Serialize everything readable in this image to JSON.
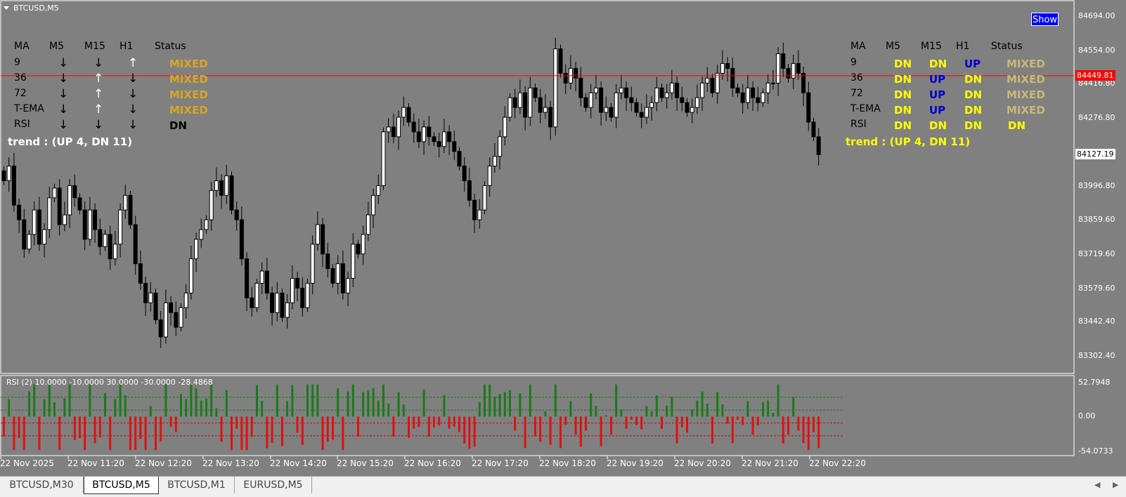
{
  "window": {
    "title": "BTCUSD,M5",
    "show_button": "Show"
  },
  "colors": {
    "bull_candle": "#ffffff",
    "bear_candle": "#000000",
    "bid_line": "#ff0000",
    "rsi_up": "#1a7a1a",
    "rsi_down": "#e01010",
    "status_mixed_left": "#daa520",
    "status_mixed_right": "#c8b878",
    "dn_yellow": "#ffff00",
    "up_blue": "#0000cc"
  },
  "left_table": {
    "headers": [
      "MA",
      "M5",
      "M15",
      "H1",
      "Status"
    ],
    "rows": [
      {
        "label": "9",
        "m5": "↓",
        "m15": "↓",
        "h1": "↑",
        "status": "MIXED"
      },
      {
        "label": "36",
        "m5": "↓",
        "m15": "↑",
        "h1": "↓",
        "status": "MIXED"
      },
      {
        "label": "72",
        "m5": "↓",
        "m15": "↑",
        "h1": "↓",
        "status": "MIXED"
      },
      {
        "label": "T-EMA",
        "m5": "↓",
        "m15": "↑",
        "h1": "↓",
        "status": "MIXED"
      },
      {
        "label": "RSI",
        "m5": "↓",
        "m15": "↓",
        "h1": "↓",
        "status": "DN"
      }
    ],
    "trend": "trend : (UP 4, DN 11)"
  },
  "right_table": {
    "headers": [
      "MA",
      "M5",
      "M15",
      "H1",
      "Status"
    ],
    "rows": [
      {
        "label": "9",
        "m5": "DN",
        "m15": "DN",
        "h1": "UP",
        "status": "MIXED"
      },
      {
        "label": "36",
        "m5": "DN",
        "m15": "UP",
        "h1": "DN",
        "status": "MIXED"
      },
      {
        "label": "72",
        "m5": "DN",
        "m15": "UP",
        "h1": "DN",
        "status": "MIXED"
      },
      {
        "label": "T-EMA",
        "m5": "DN",
        "m15": "UP",
        "h1": "DN",
        "status": "MIXED"
      },
      {
        "label": "RSI",
        "m5": "DN",
        "m15": "DN",
        "h1": "DN",
        "status": "DN"
      }
    ],
    "trend": "trend : (UP 4, DN 11)"
  },
  "price_axis": {
    "labels": [
      "84694.00",
      "84554.00",
      "84416.80",
      "84276.80",
      "83996.80",
      "83859.60",
      "83719.60",
      "83579.60",
      "83442.40",
      "83302.40"
    ],
    "bid_label": "84449.81",
    "current_label": "84127.19"
  },
  "rsi": {
    "title": "RSI (2) 10.0000 -10.0000 30.0000 -30.0000 -28.4868",
    "axis_labels": [
      "52.7948",
      "0.00",
      "-54.0733"
    ],
    "levels": [
      30,
      10,
      -10,
      -30
    ]
  },
  "time_axis": {
    "labels": [
      "22 Nov 2025",
      "22 Nov 11:20",
      "22 Nov 12:20",
      "22 Nov 13:20",
      "22 Nov 14:20",
      "22 Nov 15:20",
      "22 Nov 16:20",
      "22 Nov 17:20",
      "22 Nov 18:20",
      "22 Nov 19:20",
      "22 Nov 20:20",
      "22 Nov 21:20",
      "22 Nov 22:20"
    ]
  },
  "tabs": [
    {
      "label": "BTCUSD,M30",
      "active": false
    },
    {
      "label": "BTCUSD,M5",
      "active": true
    },
    {
      "label": "BTCUSD,M1",
      "active": false
    },
    {
      "label": "EURUSD,M5",
      "active": false
    }
  ],
  "chart_data": {
    "type": "candlestick",
    "symbol": "BTCUSD",
    "timeframe": "M5",
    "close": [
      84020,
      84080,
      83920,
      83860,
      83740,
      83800,
      83900,
      83760,
      83820,
      83950,
      83990,
      83840,
      83880,
      84000,
      83950,
      83900,
      83780,
      83900,
      83820,
      83750,
      83800,
      83700,
      83760,
      83900,
      83960,
      83840,
      83680,
      83600,
      83520,
      83560,
      83450,
      83380,
      83520,
      83480,
      83420,
      83500,
      83560,
      83700,
      83780,
      83820,
      83860,
      83980,
      84020,
      83960,
      84040,
      83900,
      83860,
      83700,
      83540,
      83500,
      83600,
      83650,
      83560,
      83480,
      83560,
      83460,
      83520,
      83620,
      83580,
      83500,
      83600,
      83760,
      83840,
      83720,
      83660,
      83600,
      83680,
      83560,
      83620,
      83760,
      83720,
      83800,
      83880,
      83960,
      84000,
      84220,
      84240,
      84200,
      84280,
      84320,
      84260,
      84220,
      84180,
      84240,
      84200,
      84180,
      84160,
      84220,
      84180,
      84140,
      84080,
      84020,
      83940,
      83860,
      83900,
      84000,
      84080,
      84120,
      84200,
      84280,
      84360,
      84320,
      84380,
      84280,
      84400,
      84360,
      84300,
      84320,
      84240,
      84560,
      84460,
      84420,
      84480,
      84440,
      84360,
      84320,
      84380,
      84400,
      84300,
      84320,
      84280,
      84380,
      84400,
      84360,
      84340,
      84300,
      84280,
      84320,
      84340,
      84400,
      84360,
      84380,
      84420,
      84360,
      84340,
      84300,
      84320,
      84360,
      84420,
      84440,
      84380,
      84460,
      84500,
      84480,
      84400,
      84380,
      84340,
      84400,
      84360,
      84340,
      84380,
      84420,
      84420,
      84540,
      84480,
      84440,
      84500,
      84460,
      84380,
      84260,
      84200,
      84127
    ],
    "price_range": [
      83260,
      84730
    ],
    "rsi_range": [
      -54.0733,
      52.7948
    ]
  }
}
